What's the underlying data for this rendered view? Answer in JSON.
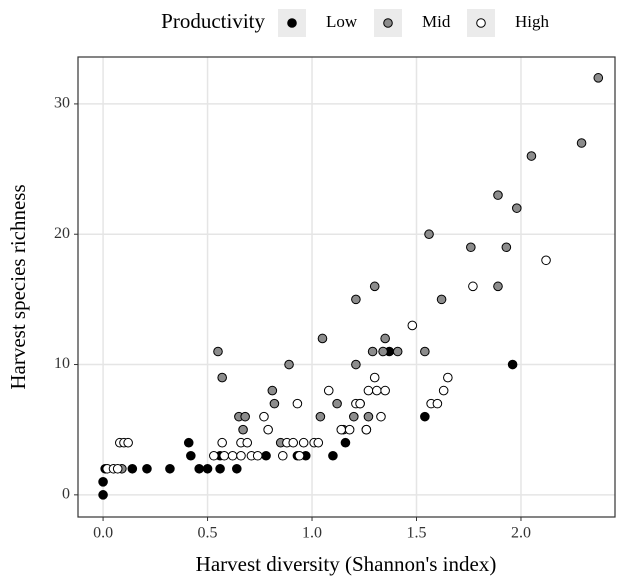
{
  "chart_data": {
    "type": "scatter",
    "xlabel": "Harvest diversity (Shannon's index)",
    "ylabel": "Harvest species richness",
    "legend_title": "Productivity",
    "legend_position": "top",
    "grid": true,
    "xlim": [
      -0.12,
      2.45
    ],
    "ylim": [
      -1.7,
      33.6
    ],
    "xticks": [
      {
        "value": 0,
        "label": "0.0"
      },
      0.5,
      {
        "value": 1,
        "label": "1.0"
      },
      1.5,
      {
        "value": 2,
        "label": "2.0"
      }
    ],
    "yticks": [
      0,
      10,
      20,
      30
    ],
    "series": [
      {
        "name": "Low",
        "color": "#000000",
        "x": [
          0,
          0,
          0.01,
          0.14,
          0.21,
          0.32,
          0.41,
          0.42,
          0.46,
          0.5,
          0.56,
          0.56,
          0.64,
          0.78,
          0.93,
          0.97,
          1.1,
          1.16,
          1.37,
          1.54,
          1.96
        ],
        "values": [
          0,
          1,
          2,
          2,
          2,
          2,
          4,
          3,
          2,
          2,
          2,
          3,
          2,
          3,
          3,
          3,
          3,
          4,
          11,
          6,
          10
        ]
      },
      {
        "name": "Mid",
        "color": "#8c8c8c",
        "x": [
          0.09,
          0.55,
          0.57,
          0.65,
          0.68,
          0.67,
          0.81,
          0.82,
          0.85,
          0.89,
          1.05,
          1.04,
          1.12,
          1.15,
          1.2,
          1.21,
          1.21,
          1.23,
          1.26,
          1.27,
          1.3,
          1.29,
          1.34,
          1.35,
          1.41,
          1.54,
          1.56,
          1.62,
          1.76,
          1.89,
          1.89,
          1.93,
          1.98,
          2.05,
          2.29,
          2.37
        ],
        "values": [
          2,
          11,
          9,
          6,
          6,
          5,
          8,
          7,
          4,
          10,
          12,
          6,
          7,
          5,
          6,
          15,
          10,
          7,
          5,
          6,
          16,
          11,
          11,
          12,
          11,
          11,
          20,
          15,
          19,
          23,
          16,
          19,
          22,
          26,
          27,
          32
        ]
      },
      {
        "name": "High",
        "color": "#ffffff",
        "x": [
          0.02,
          0.05,
          0.07,
          0.08,
          0.1,
          0.12,
          0.53,
          0.57,
          0.58,
          0.62,
          0.66,
          0.66,
          0.69,
          0.71,
          0.74,
          0.77,
          0.79,
          0.86,
          0.88,
          0.91,
          0.93,
          0.94,
          0.96,
          1.01,
          1.03,
          1.08,
          1.14,
          1.18,
          1.21,
          1.23,
          1.26,
          1.27,
          1.3,
          1.31,
          1.33,
          1.35,
          1.48,
          1.57,
          1.6,
          1.63,
          1.65,
          1.77,
          2.12
        ],
        "values": [
          2,
          2,
          2,
          4,
          4,
          4,
          3,
          4,
          3,
          3,
          3,
          4,
          4,
          3,
          3,
          6,
          5,
          3,
          4,
          4,
          7,
          3,
          4,
          4,
          4,
          8,
          5,
          5,
          7,
          7,
          5,
          8,
          9,
          8,
          6,
          8,
          13,
          7,
          7,
          8,
          9,
          16,
          18
        ]
      }
    ]
  }
}
